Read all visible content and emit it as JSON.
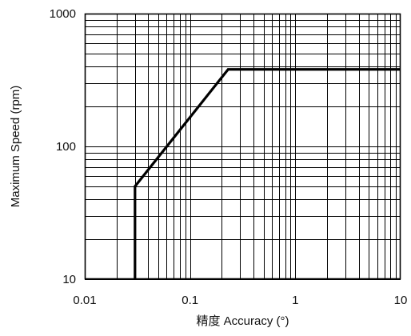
{
  "chart_data": {
    "type": "line",
    "title": "",
    "xlabel": "精度 Accuracy (°)",
    "ylabel": "Maximum Speed (rpm)",
    "x_scale": "log",
    "y_scale": "log",
    "xlim": [
      0.01,
      10
    ],
    "ylim": [
      10,
      1000
    ],
    "grid": true,
    "legend": "none",
    "x_ticks": [
      {
        "value": 0.01,
        "label": "0.01"
      },
      {
        "value": 0.1,
        "label": "0.1"
      },
      {
        "value": 1,
        "label": "1"
      },
      {
        "value": 10,
        "label": "10"
      }
    ],
    "y_ticks": [
      {
        "value": 10,
        "label": "10"
      },
      {
        "value": 100,
        "label": "100"
      },
      {
        "value": 1000,
        "label": "1000"
      }
    ],
    "series": [
      {
        "x": [
          0.03,
          0.03,
          0.23,
          10
        ],
        "y": [
          10,
          50,
          380,
          380
        ]
      }
    ],
    "colors": {
      "grid": "#000000",
      "line": "#000000",
      "text": "#111111"
    }
  }
}
